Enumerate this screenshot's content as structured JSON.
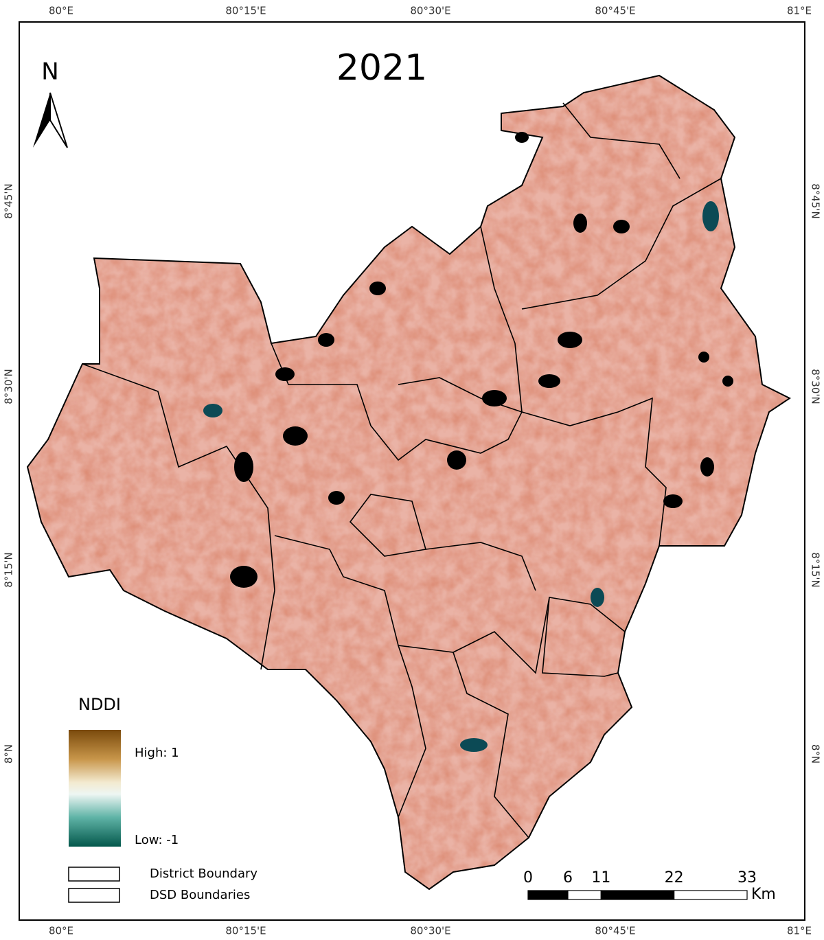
{
  "title": "2021",
  "north_arrow": "N",
  "graticule": {
    "lon_labels": [
      "80°E",
      "80°15'E",
      "80°30'E",
      "80°45'E",
      "81°E"
    ],
    "lat_labels": [
      "8°45'N",
      "8°30'N",
      "8°15'N",
      "8°N"
    ]
  },
  "legend": {
    "title": "NDDI",
    "high": "High: 1",
    "low": "Low: -1",
    "items": [
      "District Boundary",
      "DSD Boundaries"
    ]
  },
  "scale_bar": {
    "ticks": [
      0,
      6,
      11,
      22,
      33
    ],
    "unit": "Km"
  }
}
